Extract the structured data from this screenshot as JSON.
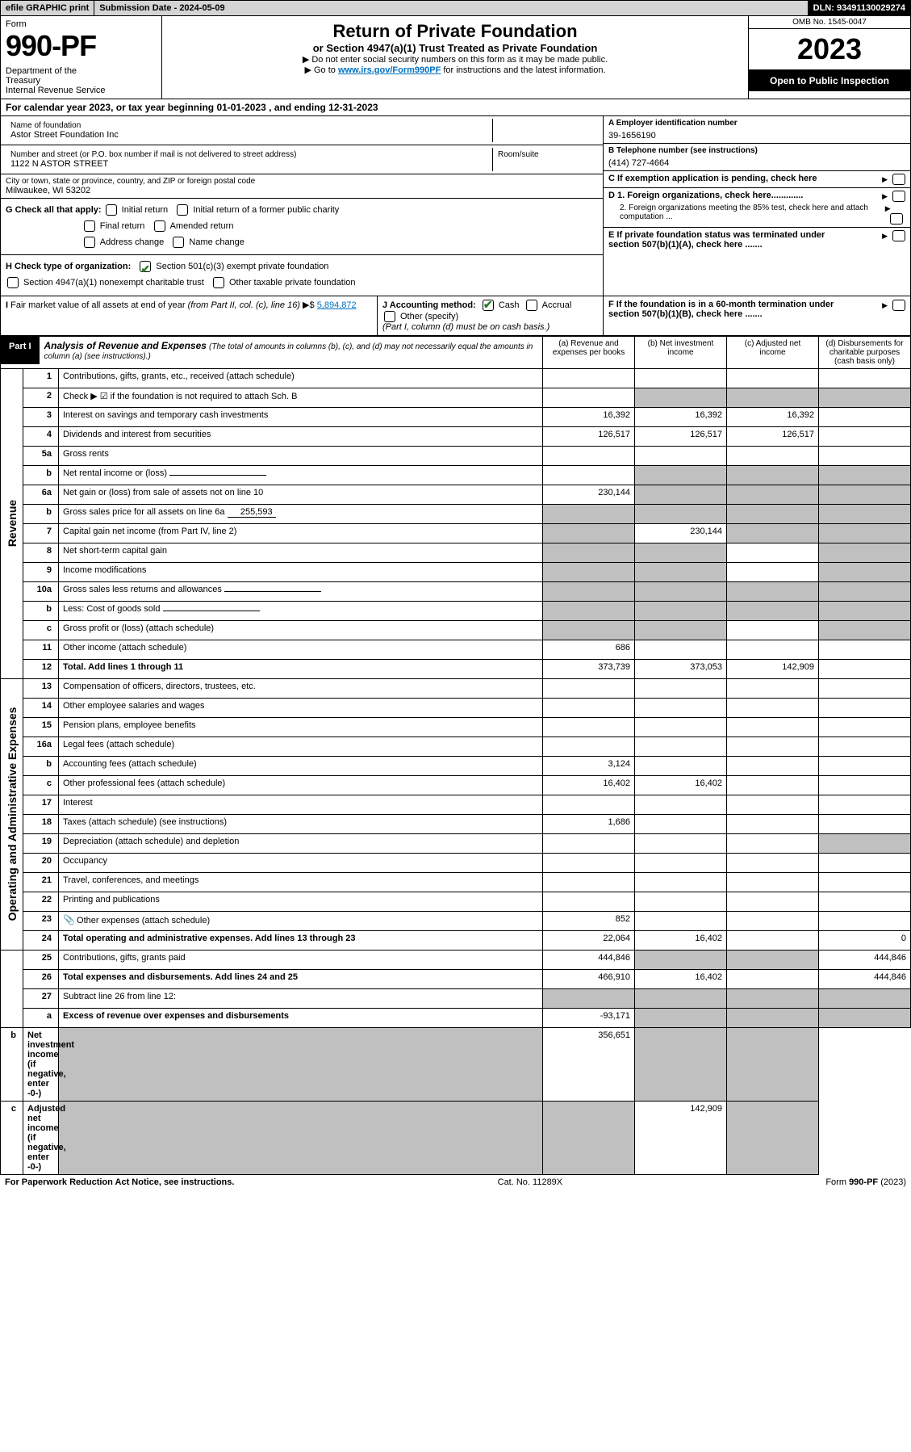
{
  "top": {
    "efile": "efile GRAPHIC print",
    "submission": "Submission Date - 2024-05-09",
    "dln": "DLN: 93491130029274"
  },
  "header": {
    "form_word": "Form",
    "form_no": "990-PF",
    "dept": "Department of the Treasury\nInternal Revenue Service",
    "title": "Return of Private Foundation",
    "subtitle": "or Section 4947(a)(1) Trust Treated as Private Foundation",
    "note1": "▶ Do not enter social security numbers on this form as it may be made public.",
    "note2_prefix": "▶ Go to ",
    "note2_link": "www.irs.gov/Form990PF",
    "note2_suffix": " for instructions and the latest information.",
    "omb": "OMB No. 1545-0047",
    "year": "2023",
    "inspection": "Open to Public Inspection"
  },
  "cal": {
    "text": "For calendar year 2023, or tax year beginning 01-01-2023              , and ending 12-31-2023"
  },
  "info": {
    "name_lbl": "Name of foundation",
    "name_val": "Astor Street Foundation Inc",
    "addr_lbl": "Number and street (or P.O. box number if mail is not delivered to street address)",
    "addr_val": "1122 N ASTOR STREET",
    "room_lbl": "Room/suite",
    "city_lbl": "City or town, state or province, country, and ZIP or foreign postal code",
    "city_val": "Milwaukee, WI  53202",
    "ein_lbl": "A Employer identification number",
    "ein_val": "39-1656190",
    "tel_lbl": "B Telephone number (see instructions)",
    "tel_val": "(414) 727-4664",
    "C": "C If exemption application is pending, check here",
    "D1": "D 1. Foreign organizations, check here.............",
    "D2": "2. Foreign organizations meeting the 85% test, check here and attach computation ...",
    "E": "E  If private foundation status was terminated under section 507(b)(1)(A), check here .......",
    "F": "F  If the foundation is in a 60-month termination under section 507(b)(1)(B), check here .......",
    "G_lbl": "G Check all that apply:",
    "G_opts": [
      "Initial return",
      "Initial return of a former public charity",
      "Final return",
      "Amended return",
      "Address change",
      "Name change"
    ],
    "H_lbl": "H Check type of organization:",
    "H_opts": [
      "Section 501(c)(3) exempt private foundation",
      "Section 4947(a)(1) nonexempt charitable trust",
      "Other taxable private foundation"
    ],
    "I_lbl": "I Fair market value of all assets at end of year (from Part II, col. (c), line 16) ▶$",
    "I_val": "5,894,872",
    "J_lbl": "J Accounting method:",
    "J_opts": [
      "Cash",
      "Accrual"
    ],
    "J_other": "Other (specify)",
    "J_note": "(Part I, column (d) must be on cash basis.)"
  },
  "part1": {
    "tag": "Part I",
    "title": "Analysis of Revenue and Expenses",
    "note": "(The total of amounts in columns (b), (c), and (d) may not necessarily equal the amounts in column (a) (see instructions).)",
    "col_a": "(a)  Revenue and expenses per books",
    "col_b": "(b)  Net investment income",
    "col_c": "(c)  Adjusted net income",
    "col_d": "(d)  Disbursements for charitable purposes (cash basis only)"
  },
  "vlabels": {
    "rev": "Revenue",
    "opex": "Operating and Administrative Expenses"
  },
  "rows": [
    {
      "n": "1",
      "d": "Contributions, gifts, grants, etc., received (attach schedule)",
      "a": "",
      "b": "",
      "c": "",
      "dd": "",
      "cshade": ""
    },
    {
      "n": "2",
      "d": "Check ▶ ☑ if the foundation is not required to attach Sch. B",
      "a": "",
      "b": "g",
      "c": "g",
      "dd": "g"
    },
    {
      "n": "3",
      "d": "Interest on savings and temporary cash investments",
      "a": "16,392",
      "b": "16,392",
      "c": "16,392",
      "dd": ""
    },
    {
      "n": "4",
      "d": "Dividends and interest from securities",
      "a": "126,517",
      "b": "126,517",
      "c": "126,517",
      "dd": ""
    },
    {
      "n": "5a",
      "d": "Gross rents",
      "a": "",
      "b": "",
      "c": "",
      "dd": ""
    },
    {
      "n": "b",
      "d": "Net rental income or (loss)",
      "a": "",
      "b": "g",
      "c": "g",
      "dd": "g",
      "half": true
    },
    {
      "n": "6a",
      "d": "Net gain or (loss) from sale of assets not on line 10",
      "a": "230,144",
      "b": "g",
      "c": "g",
      "dd": "g"
    },
    {
      "n": "b",
      "d": "Gross sales price for all assets on line 6a",
      "fill": "255,593",
      "a": "g",
      "b": "g",
      "c": "g",
      "dd": "g"
    },
    {
      "n": "7",
      "d": "Capital gain net income (from Part IV, line 2)",
      "a": "g",
      "b": "230,144",
      "c": "g",
      "dd": "g"
    },
    {
      "n": "8",
      "d": "Net short-term capital gain",
      "a": "g",
      "b": "g",
      "c": "",
      "dd": "g"
    },
    {
      "n": "9",
      "d": "Income modifications",
      "a": "g",
      "b": "g",
      "c": "",
      "dd": "g"
    },
    {
      "n": "10a",
      "d": "Gross sales less returns and allowances",
      "a": "g",
      "b": "g",
      "c": "g",
      "dd": "g",
      "half": true
    },
    {
      "n": "b",
      "d": "Less: Cost of goods sold",
      "a": "g",
      "b": "g",
      "c": "g",
      "dd": "g",
      "half": true
    },
    {
      "n": "c",
      "d": "Gross profit or (loss) (attach schedule)",
      "a": "g",
      "b": "g",
      "c": "",
      "dd": "g"
    },
    {
      "n": "11",
      "d": "Other income (attach schedule)",
      "a": "686",
      "b": "",
      "c": "",
      "dd": ""
    },
    {
      "n": "12",
      "d": "Total. Add lines 1 through 11",
      "a": "373,739",
      "b": "373,053",
      "c": "142,909",
      "dd": "",
      "bold": true
    },
    {
      "n": "13",
      "d": "Compensation of officers, directors, trustees, etc.",
      "a": "",
      "b": "",
      "c": "",
      "dd": ""
    },
    {
      "n": "14",
      "d": "Other employee salaries and wages",
      "a": "",
      "b": "",
      "c": "",
      "dd": ""
    },
    {
      "n": "15",
      "d": "Pension plans, employee benefits",
      "a": "",
      "b": "",
      "c": "",
      "dd": ""
    },
    {
      "n": "16a",
      "d": "Legal fees (attach schedule)",
      "a": "",
      "b": "",
      "c": "",
      "dd": ""
    },
    {
      "n": "b",
      "d": "Accounting fees (attach schedule)",
      "a": "3,124",
      "b": "",
      "c": "",
      "dd": ""
    },
    {
      "n": "c",
      "d": "Other professional fees (attach schedule)",
      "a": "16,402",
      "b": "16,402",
      "c": "",
      "dd": ""
    },
    {
      "n": "17",
      "d": "Interest",
      "a": "",
      "b": "",
      "c": "",
      "dd": ""
    },
    {
      "n": "18",
      "d": "Taxes (attach schedule) (see instructions)",
      "a": "1,686",
      "b": "",
      "c": "",
      "dd": ""
    },
    {
      "n": "19",
      "d": "Depreciation (attach schedule) and depletion",
      "a": "",
      "b": "",
      "c": "",
      "dd": "g"
    },
    {
      "n": "20",
      "d": "Occupancy",
      "a": "",
      "b": "",
      "c": "",
      "dd": ""
    },
    {
      "n": "21",
      "d": "Travel, conferences, and meetings",
      "a": "",
      "b": "",
      "c": "",
      "dd": ""
    },
    {
      "n": "22",
      "d": "Printing and publications",
      "a": "",
      "b": "",
      "c": "",
      "dd": ""
    },
    {
      "n": "23",
      "d": "Other expenses (attach schedule)",
      "a": "852",
      "b": "",
      "c": "",
      "dd": "",
      "attach": true
    },
    {
      "n": "24",
      "d": "Total operating and administrative expenses. Add lines 13 through 23",
      "a": "22,064",
      "b": "16,402",
      "c": "",
      "dd": "0",
      "bold": true
    },
    {
      "n": "25",
      "d": "Contributions, gifts, grants paid",
      "a": "444,846",
      "b": "g",
      "c": "g",
      "dd": "444,846"
    },
    {
      "n": "26",
      "d": "Total expenses and disbursements. Add lines 24 and 25",
      "a": "466,910",
      "b": "16,402",
      "c": "",
      "dd": "444,846",
      "bold": true
    },
    {
      "n": "27",
      "d": "Subtract line 26 from line 12:",
      "a": "g",
      "b": "g",
      "c": "g",
      "dd": "g"
    },
    {
      "n": "a",
      "d": "Excess of revenue over expenses and disbursements",
      "a": "-93,171",
      "b": "g",
      "c": "g",
      "dd": "g",
      "bold": true
    },
    {
      "n": "b",
      "d": "Net investment income (if negative, enter -0-)",
      "a": "g",
      "b": "356,651",
      "c": "g",
      "dd": "g",
      "bold": true
    },
    {
      "n": "c",
      "d": "Adjusted net income (if negative, enter -0-)",
      "a": "g",
      "b": "g",
      "c": "142,909",
      "dd": "g",
      "bold": true
    }
  ],
  "footer": {
    "left": "For Paperwork Reduction Act Notice, see instructions.",
    "mid": "Cat. No. 11289X",
    "right": "Form 990-PF (2023)"
  }
}
